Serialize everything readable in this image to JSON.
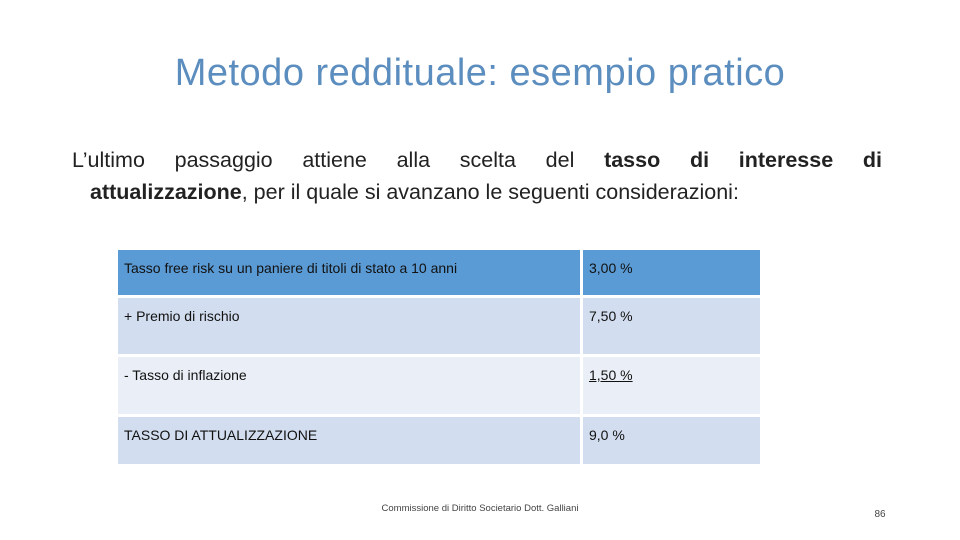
{
  "slide": {
    "title": "Metodo reddituale: esempio pratico",
    "intro": {
      "part1": "L’ultimo passaggio attiene alla scelta del ",
      "bold1": "tasso di interesse di",
      "bold2": "attualizzazione",
      "part2": ", per il quale si avanzano le seguenti considerazioni:"
    }
  },
  "table": {
    "rows": [
      {
        "label": "Tasso free risk su un paniere di titoli di stato a 10 anni",
        "value": "3,00 %"
      },
      {
        "label": "+ Premio di rischio",
        "value": "7,50 %"
      },
      {
        "label": "- Tasso di inflazione",
        "value": "1,50 %"
      },
      {
        "label": "TASSO DI ATTUALIZZAZIONE",
        "value": "9,0 %"
      }
    ]
  },
  "footer": {
    "text": "Commissione di Diritto Societario Dott. Galliani",
    "page_number": "86"
  },
  "colors": {
    "title": "#5B8DBE",
    "header_row": "#5B9BD5",
    "row_dark": "#D2DEEF",
    "row_light": "#EAEFF7"
  }
}
